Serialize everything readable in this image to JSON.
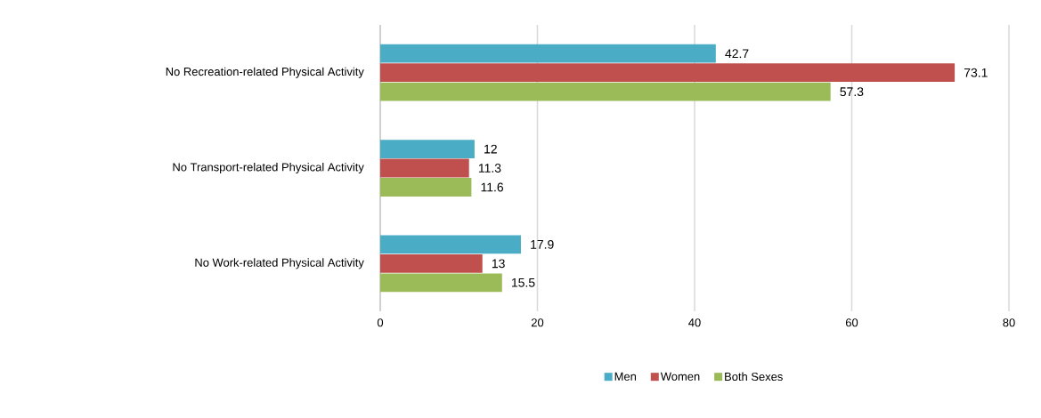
{
  "chart_data": {
    "type": "bar",
    "orientation": "horizontal",
    "categories": [
      "No Recreation-related Physical Activity",
      "No Transport-related Physical Activity",
      "No Work-related Physical Activity"
    ],
    "series": [
      {
        "name": "Men",
        "color": "#4bacc6",
        "values": [
          42.7,
          12,
          17.9
        ]
      },
      {
        "name": "Women",
        "color": "#c0504d",
        "values": [
          73.1,
          11.3,
          13
        ]
      },
      {
        "name": "Both Sexes",
        "color": "#9bbb59",
        "values": [
          57.3,
          11.6,
          15.5
        ]
      }
    ],
    "xlim": [
      0,
      80
    ],
    "xticks": [
      0,
      20,
      40,
      60,
      80
    ],
    "grid": "x",
    "legend": "bottom",
    "data_labels": true
  }
}
